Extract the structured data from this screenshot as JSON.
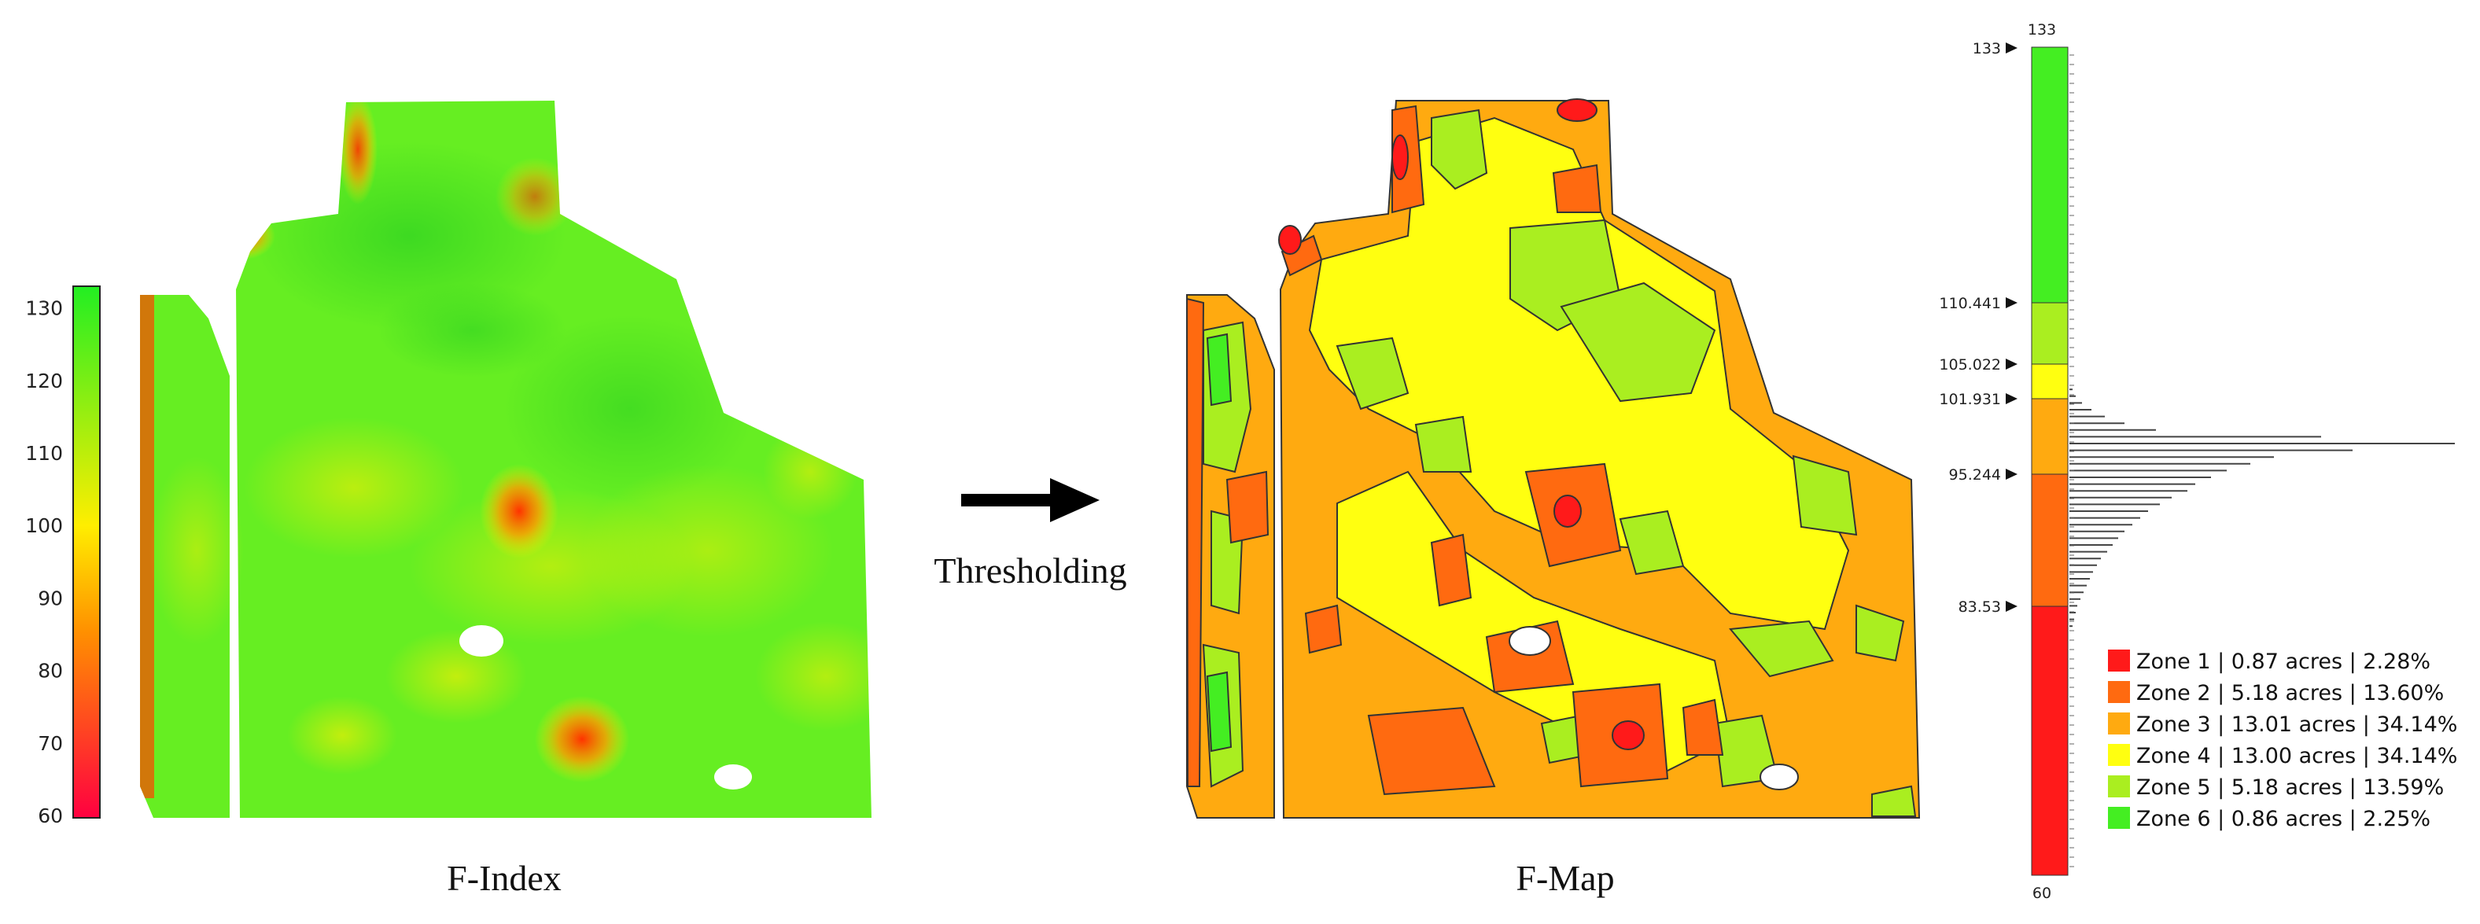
{
  "findex_scale": {
    "ticks": [
      "60",
      "70",
      "80",
      "90",
      "100",
      "110",
      "120",
      "130"
    ],
    "colors": {
      "low": "#ff0000",
      "mid": "#ffee00",
      "high": "#22ee22"
    }
  },
  "findex_caption": "F-Index",
  "arrow_label": "Thresholding",
  "fmap_caption": "F-Map",
  "bar": {
    "top_value": "133",
    "bottom_value": "60",
    "thresholds": [
      "133",
      "110.441",
      "105.022",
      "101.931",
      "95.244",
      "83.53"
    ]
  },
  "zones": [
    {
      "color": "#ff1a1a",
      "label": "Zone 1 | 0.87 acres | 2.28%"
    },
    {
      "color": "#ff6a10",
      "label": "Zone 2 | 5.18 acres | 13.60%"
    },
    {
      "color": "#ffaa10",
      "label": "Zone 3 | 13.01 acres | 34.14%"
    },
    {
      "color": "#ffff10",
      "label": "Zone 4 | 13.00 acres | 34.14%"
    },
    {
      "color": "#aaee20",
      "label": "Zone 5 | 5.18 acres | 13.59%"
    },
    {
      "color": "#44ee22",
      "label": "Zone 6 | 0.86 acres | 2.25%"
    }
  ]
}
